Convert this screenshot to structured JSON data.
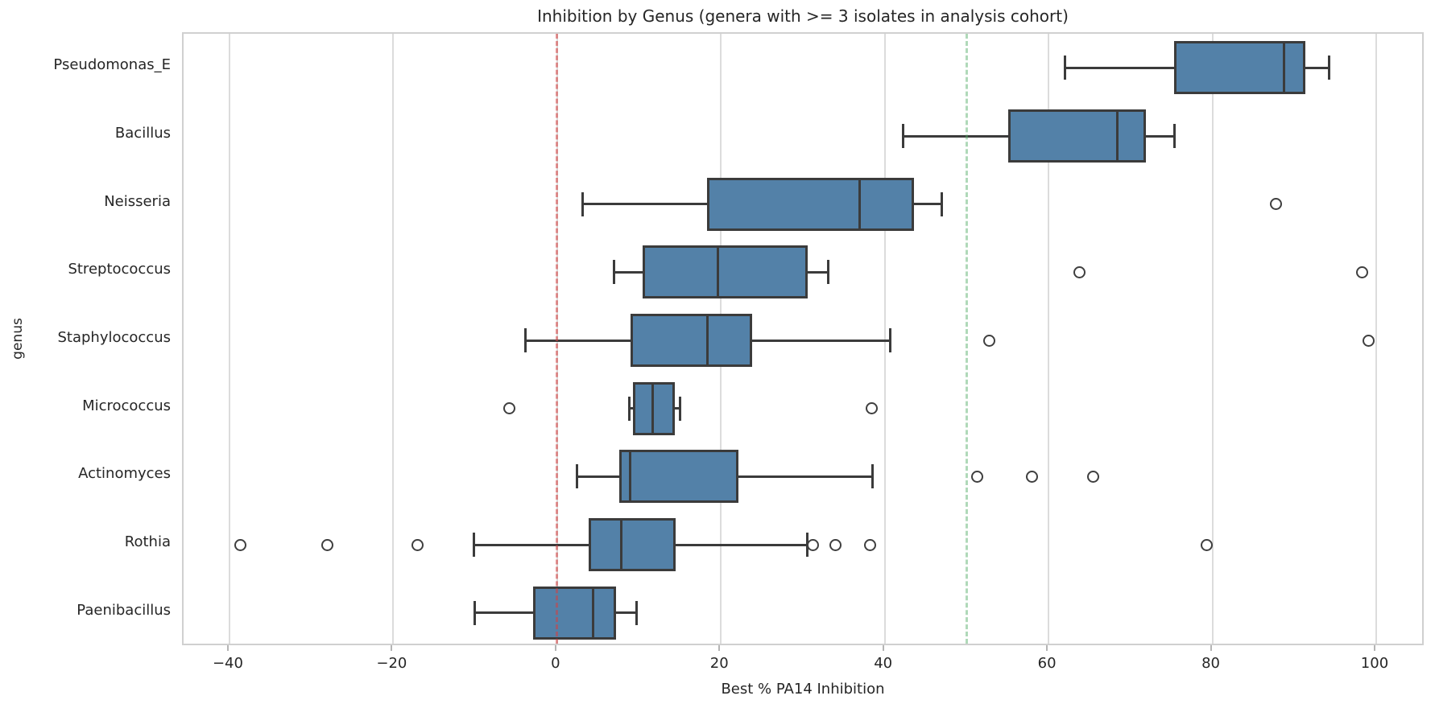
{
  "chart_data": {
    "type": "boxplot",
    "orientation": "horizontal",
    "title": "Inhibition by Genus (genera with >= 3 isolates in analysis cohort)",
    "xlabel": "Best % PA14 Inhibition",
    "ylabel": "genus",
    "xlim": [
      -45.6,
      106.0
    ],
    "xticks": [
      -40,
      -20,
      0,
      20,
      40,
      60,
      80,
      100
    ],
    "xtick_labels": [
      "−40",
      "−20",
      "0",
      "20",
      "40",
      "60",
      "80",
      "100"
    ],
    "grid": "vertical-only",
    "legend": "none",
    "categories": [
      "Pseudomonas_E",
      "Bacillus",
      "Neisseria",
      "Streptococcus",
      "Staphylococcus",
      "Micrococcus",
      "Actinomyces",
      "Rothia",
      "Paenibacillus"
    ],
    "series": [
      {
        "name": "Pseudomonas_E",
        "whisker_low": 62.0,
        "q1": 75.3,
        "median": 88.7,
        "q3": 91.4,
        "whisker_high": 94.3,
        "outliers": []
      },
      {
        "name": "Bacillus",
        "whisker_low": 42.2,
        "q1": 55.1,
        "median": 68.4,
        "q3": 71.9,
        "whisker_high": 75.4,
        "outliers": []
      },
      {
        "name": "Neisseria",
        "whisker_low": 3.1,
        "q1": 18.3,
        "median": 36.9,
        "q3": 43.6,
        "whisker_high": 47.0,
        "outliers": [
          87.8
        ]
      },
      {
        "name": "Streptococcus",
        "whisker_low": 6.9,
        "q1": 10.4,
        "median": 19.6,
        "q3": 30.6,
        "whisker_high": 33.1,
        "outliers": [
          63.8,
          98.3
        ]
      },
      {
        "name": "Staphylococcus",
        "whisker_low": -3.9,
        "q1": 9.0,
        "median": 18.4,
        "q3": 23.8,
        "whisker_high": 40.7,
        "outliers": [
          52.8,
          99.1
        ]
      },
      {
        "name": "Micrococcus",
        "whisker_low": 8.8,
        "q1": 9.3,
        "median": 11.7,
        "q3": 14.4,
        "whisker_high": 15.0,
        "outliers": [
          -5.8,
          38.4
        ]
      },
      {
        "name": "Actinomyces",
        "whisker_low": 2.4,
        "q1": 7.6,
        "median": 8.9,
        "q3": 22.1,
        "whisker_high": 38.5,
        "outliers": [
          51.3,
          58.0,
          65.4
        ]
      },
      {
        "name": "Rothia",
        "whisker_low": -10.2,
        "q1": 3.9,
        "median": 7.8,
        "q3": 14.5,
        "whisker_high": 30.5,
        "outliers": [
          -38.7,
          -28.1,
          -17.0,
          31.2,
          34.0,
          38.2,
          79.3
        ]
      },
      {
        "name": "Paenibacillus",
        "whisker_low": -10.1,
        "q1": -2.9,
        "median": 4.4,
        "q3": 7.2,
        "whisker_high": 9.7,
        "outliers": []
      }
    ],
    "reference_lines": [
      {
        "name": "zero-reference-line",
        "value": 0,
        "color": "rgba(214,64,64,0.55)"
      },
      {
        "name": "fifty-reference-line",
        "value": 50,
        "color": "rgba(80,170,100,0.45)"
      }
    ],
    "colors": {
      "box_fill": "#5381a8",
      "box_edge": "#3b3b3b",
      "grid": "#dcdcdc",
      "spine": "#d0d0d0",
      "text": "#262626"
    }
  }
}
